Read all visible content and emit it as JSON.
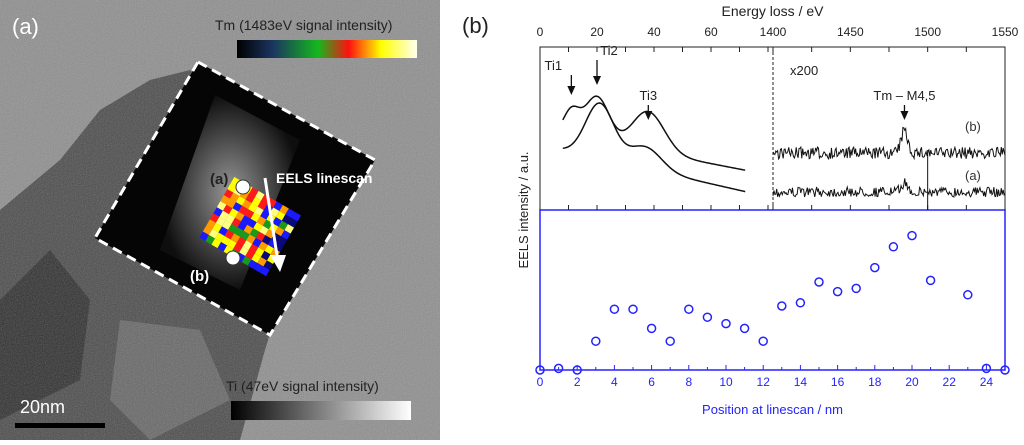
{
  "panel_a": {
    "label": "(a)",
    "tm_colorbar_title": "Tm (1483eV signal intensity)",
    "ti_colorbar_title": "Ti (47eV signal intensity)",
    "scale_bar": "20nm",
    "linescan_label": "EELS linescan",
    "point_a": "(a)",
    "point_b": "(b)"
  },
  "chart_data": [
    {
      "type": "line",
      "panel": "(b) top",
      "title": "",
      "xlabel": "Energy loss / eV",
      "ylabel": "EELS intensity / a.u.",
      "x_ticks_low": [
        "0",
        "20",
        "40",
        "60",
        "1400"
      ],
      "x_ticks_high": [
        "1450",
        "1500",
        "1550"
      ],
      "xlim_low": [
        0,
        80
      ],
      "xlim_high": [
        1400,
        1550
      ],
      "axis_break": "between 80 and 1400 eV",
      "annotations": [
        "Ti1",
        "Ti2",
        "Ti3",
        "x200",
        "Tm – M4,5"
      ],
      "annotation_energies": {
        "Ti1": 11,
        "Ti2": 20,
        "Ti3": 38,
        "Tm – M4,5": 1485
      },
      "series": [
        {
          "name": "(b)",
          "low_loss_peaks_eV": [
            11,
            20,
            38
          ],
          "tm_peak_eV": 1485,
          "tm_peak_relative": 0.5
        },
        {
          "name": "(a)",
          "low_loss_peaks_eV": [
            21,
            37
          ],
          "tm_peak_eV": 1485,
          "tm_peak_relative": 0.2
        }
      ],
      "series_labels": [
        "(b)",
        "(a)"
      ]
    },
    {
      "type": "scatter",
      "panel": "(b) bottom",
      "xlabel": "Position at linescan / nm",
      "ylabel": "",
      "xlim": [
        0,
        25
      ],
      "ylim": [
        0,
        1
      ],
      "x_ticks": [
        "0",
        "2",
        "4",
        "6",
        "8",
        "10",
        "12",
        "14",
        "16",
        "18",
        "20",
        "22",
        "24"
      ],
      "x": [
        0,
        1,
        2,
        3,
        4,
        5,
        6,
        7,
        8,
        9,
        10,
        11,
        12,
        13,
        14,
        15,
        16,
        17,
        18,
        19,
        20,
        21,
        23,
        24,
        25
      ],
      "y": [
        0,
        0.01,
        0,
        0.18,
        0.38,
        0.38,
        0.26,
        0.18,
        0.38,
        0.33,
        0.29,
        0.26,
        0.18,
        0.4,
        0.42,
        0.55,
        0.49,
        0.51,
        0.64,
        0.77,
        0.84,
        0.56,
        0.47,
        0.01,
        0
      ],
      "color": "#2323ff"
    }
  ],
  "panel_b": {
    "label": "(b)"
  }
}
